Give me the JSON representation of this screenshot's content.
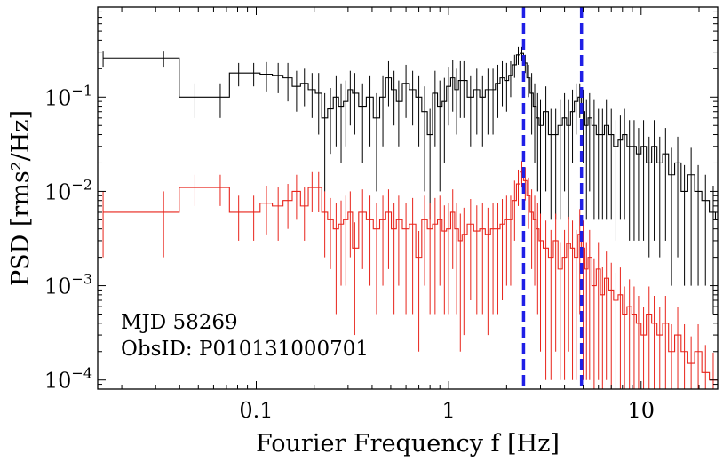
{
  "chart_data": {
    "type": "line",
    "xlabel": "Fourier Frequency f [Hz]",
    "ylabel": "PSD [rms²/Hz]",
    "xscale": "log",
    "yscale": "log",
    "xlim": [
      0.015,
      25
    ],
    "ylim": [
      8e-05,
      0.9
    ],
    "x_ticks": [
      {
        "value": 0.1,
        "label": "0.1"
      },
      {
        "value": 1,
        "label": "1"
      },
      {
        "value": 10,
        "label": "10"
      }
    ],
    "y_ticks": [
      {
        "value": 0.1,
        "base": "10",
        "exp": "−1"
      },
      {
        "value": 0.01,
        "base": "10",
        "exp": "−2"
      },
      {
        "value": 0.001,
        "base": "10",
        "exp": "−3"
      },
      {
        "value": 0.0001,
        "base": "10",
        "exp": "−4"
      }
    ],
    "annotations": [
      "MJD 58269",
      "ObsID: P010131000701"
    ],
    "vlines": [
      {
        "x": 2.45,
        "color": "#1f1fe6",
        "style": "dashed"
      },
      {
        "x": 4.9,
        "color": "#1f1fe6",
        "style": "dashed"
      }
    ],
    "series": [
      {
        "color": "#000000",
        "x": [
          0.016,
          0.033,
          0.048,
          0.065,
          0.081,
          0.097,
          0.113,
          0.13,
          0.146,
          0.162,
          0.178,
          0.195,
          0.211,
          0.227,
          0.243,
          0.26,
          0.276,
          0.292,
          0.308,
          0.325,
          0.357,
          0.39,
          0.422,
          0.455,
          0.487,
          0.52,
          0.55,
          0.6,
          0.65,
          0.7,
          0.75,
          0.8,
          0.85,
          0.9,
          0.95,
          1.0,
          1.05,
          1.1,
          1.15,
          1.2,
          1.3,
          1.4,
          1.5,
          1.6,
          1.7,
          1.8,
          1.9,
          2.0,
          2.1,
          2.2,
          2.3,
          2.4,
          2.5,
          2.6,
          2.7,
          2.8,
          2.9,
          3.0,
          3.2,
          3.4,
          3.6,
          3.8,
          4.0,
          4.2,
          4.4,
          4.6,
          4.8,
          5.0,
          5.2,
          5.4,
          5.7,
          6.0,
          6.3,
          6.6,
          7.0,
          7.4,
          7.8,
          8.2,
          8.7,
          9.2,
          9.7,
          10.3,
          11,
          11.7,
          12.5,
          13.4,
          14.4,
          15.5,
          16.8,
          18.2,
          19.8,
          21.6,
          23.7,
          25
        ],
        "y": [
          0.26,
          0.26,
          0.1,
          0.1,
          0.18,
          0.18,
          0.175,
          0.17,
          0.16,
          0.13,
          0.14,
          0.12,
          0.11,
          0.06,
          0.075,
          0.1,
          0.08,
          0.09,
          0.12,
          0.11,
          0.08,
          0.1,
          0.06,
          0.1,
          0.16,
          0.12,
          0.09,
          0.14,
          0.12,
          0.1,
          0.07,
          0.04,
          0.11,
          0.08,
          0.09,
          0.13,
          0.16,
          0.12,
          0.15,
          0.15,
          0.1,
          0.12,
          0.1,
          0.12,
          0.12,
          0.14,
          0.16,
          0.15,
          0.17,
          0.22,
          0.28,
          0.29,
          0.23,
          0.16,
          0.11,
          0.08,
          0.06,
          0.05,
          0.07,
          0.04,
          0.04,
          0.05,
          0.06,
          0.05,
          0.07,
          0.09,
          0.1,
          0.07,
          0.05,
          0.06,
          0.05,
          0.04,
          0.04,
          0.05,
          0.04,
          0.03,
          0.035,
          0.04,
          0.03,
          0.03,
          0.025,
          0.03,
          0.02,
          0.03,
          0.02,
          0.025,
          0.015,
          0.02,
          0.01,
          0.015,
          0.01,
          0.008,
          0.006,
          0.005
        ],
        "yerr": [
          0.05,
          0.05,
          0.04,
          0.04,
          0.05,
          0.05,
          0.06,
          0.06,
          0.07,
          0.06,
          0.06,
          0.06,
          0.07,
          0.05,
          0.05,
          0.07,
          0.06,
          0.06,
          0.07,
          0.07,
          0.06,
          0.07,
          0.05,
          0.07,
          0.08,
          0.07,
          0.06,
          0.08,
          0.07,
          0.07,
          0.06,
          0.035,
          0.08,
          0.07,
          0.07,
          0.08,
          0.09,
          0.08,
          0.09,
          0.09,
          0.07,
          0.08,
          0.07,
          0.08,
          0.08,
          0.08,
          0.08,
          0.08,
          0.07,
          0.06,
          0.06,
          0.05,
          0.05,
          0.06,
          0.07,
          0.06,
          0.05,
          0.045,
          0.06,
          0.035,
          0.035,
          0.045,
          0.05,
          0.045,
          0.05,
          0.05,
          0.04,
          0.05,
          0.045,
          0.05,
          0.045,
          0.035,
          0.035,
          0.045,
          0.035,
          0.027,
          0.03,
          0.035,
          0.027,
          0.027,
          0.022,
          0.027,
          0.018,
          0.027,
          0.018,
          0.022,
          0.014,
          0.018,
          0.009,
          0.014,
          0.009,
          0.007,
          0.0055,
          0.0045
        ]
      },
      {
        "color": "#e8231a",
        "x": [
          0.016,
          0.033,
          0.048,
          0.065,
          0.081,
          0.097,
          0.113,
          0.13,
          0.146,
          0.162,
          0.178,
          0.195,
          0.211,
          0.227,
          0.243,
          0.26,
          0.276,
          0.292,
          0.308,
          0.325,
          0.357,
          0.39,
          0.422,
          0.455,
          0.487,
          0.52,
          0.55,
          0.6,
          0.65,
          0.7,
          0.75,
          0.8,
          0.85,
          0.9,
          0.95,
          1.0,
          1.05,
          1.1,
          1.15,
          1.2,
          1.3,
          1.4,
          1.5,
          1.6,
          1.7,
          1.8,
          1.9,
          2.0,
          2.1,
          2.2,
          2.3,
          2.4,
          2.5,
          2.6,
          2.7,
          2.8,
          2.9,
          3.0,
          3.2,
          3.4,
          3.6,
          3.8,
          4.0,
          4.2,
          4.4,
          4.6,
          4.8,
          5.0,
          5.2,
          5.4,
          5.7,
          6.0,
          6.3,
          6.6,
          7.0,
          7.4,
          7.8,
          8.2,
          8.7,
          9.2,
          9.7,
          10.3,
          11,
          11.7,
          12.5,
          13.4,
          14.4,
          15.5,
          16.8,
          18.2,
          19.8,
          21.6,
          23.7,
          25
        ],
        "y": [
          0.006,
          0.006,
          0.011,
          0.011,
          0.006,
          0.006,
          0.0075,
          0.007,
          0.008,
          0.01,
          0.007,
          0.011,
          0.011,
          0.006,
          0.005,
          0.004,
          0.0045,
          0.005,
          0.006,
          0.0025,
          0.006,
          0.005,
          0.004,
          0.005,
          0.006,
          0.004,
          0.005,
          0.004,
          0.0045,
          0.002,
          0.005,
          0.004,
          0.0045,
          0.005,
          0.0038,
          0.004,
          0.006,
          0.004,
          0.003,
          0.0035,
          0.0045,
          0.0038,
          0.004,
          0.0035,
          0.004,
          0.004,
          0.0045,
          0.005,
          0.005,
          0.008,
          0.012,
          0.016,
          0.013,
          0.009,
          0.006,
          0.005,
          0.004,
          0.003,
          0.0025,
          0.002,
          0.003,
          0.0015,
          0.002,
          0.0028,
          0.0025,
          0.002,
          0.0035,
          0.0025,
          0.0015,
          0.002,
          0.001,
          0.0015,
          0.0008,
          0.0012,
          0.0009,
          0.0007,
          0.0008,
          0.0005,
          0.0006,
          0.0005,
          0.0004,
          0.0003,
          0.0005,
          0.0004,
          0.0003,
          0.0004,
          0.0002,
          0.0003,
          0.0002,
          0.00015,
          0.0002,
          0.00012,
          0.0001,
          0.0001
        ],
        "yerr": [
          0.004,
          0.004,
          0.004,
          0.004,
          0.003,
          0.003,
          0.004,
          0.004,
          0.004,
          0.005,
          0.004,
          0.005,
          0.005,
          0.004,
          0.0035,
          0.0035,
          0.0035,
          0.004,
          0.004,
          0.0022,
          0.0045,
          0.004,
          0.0035,
          0.004,
          0.0045,
          0.0035,
          0.004,
          0.0035,
          0.004,
          0.0018,
          0.004,
          0.0035,
          0.004,
          0.004,
          0.0033,
          0.0035,
          0.0045,
          0.0035,
          0.0028,
          0.0032,
          0.0038,
          0.0033,
          0.0035,
          0.0032,
          0.0035,
          0.0035,
          0.0038,
          0.004,
          0.004,
          0.005,
          0.005,
          0.005,
          0.005,
          0.005,
          0.0045,
          0.004,
          0.0035,
          0.0028,
          0.0024,
          0.0019,
          0.0028,
          0.0014,
          0.0019,
          0.0026,
          0.0024,
          0.0019,
          0.003,
          0.0024,
          0.0014,
          0.0019,
          0.00095,
          0.0014,
          0.00077,
          0.0011,
          0.00085,
          0.00067,
          0.00076,
          0.00048,
          0.00057,
          0.00048,
          0.00038,
          0.00029,
          0.00048,
          0.00038,
          0.00029,
          0.00038,
          0.00019,
          0.00029,
          0.00019,
          0.00014,
          0.00019,
          0.000115,
          9.5e-05,
          9.5e-05
        ]
      }
    ]
  }
}
